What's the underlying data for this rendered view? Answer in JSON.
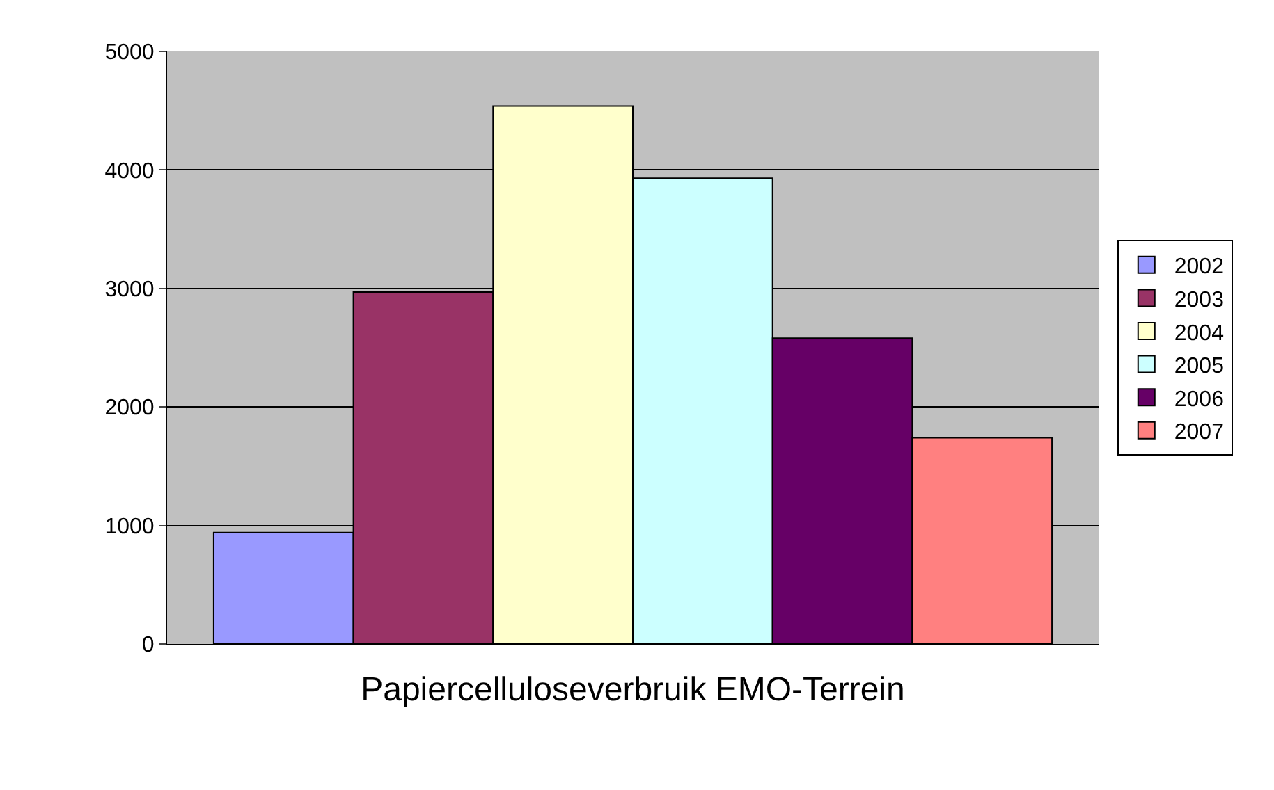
{
  "chart_data": {
    "type": "bar",
    "xlabel": "Papiercelluloseverbruik EMO-Terrein",
    "categories": [
      null
    ],
    "series": [
      {
        "name": "2002",
        "color": "#9999ff",
        "values": [
          940
        ]
      },
      {
        "name": "2003",
        "color": "#993366",
        "values": [
          2970
        ]
      },
      {
        "name": "2004",
        "color": "#ffffcc",
        "values": [
          4540
        ]
      },
      {
        "name": "2005",
        "color": "#ccffff",
        "values": [
          3930
        ]
      },
      {
        "name": "2006",
        "color": "#660066",
        "values": [
          2580
        ]
      },
      {
        "name": "2007",
        "color": "#ff8080",
        "values": [
          1740
        ]
      }
    ],
    "ylim": [
      0,
      5000
    ],
    "yticks": [
      0,
      1000,
      2000,
      3000,
      4000,
      5000
    ],
    "grid": "y",
    "legend": "right"
  }
}
